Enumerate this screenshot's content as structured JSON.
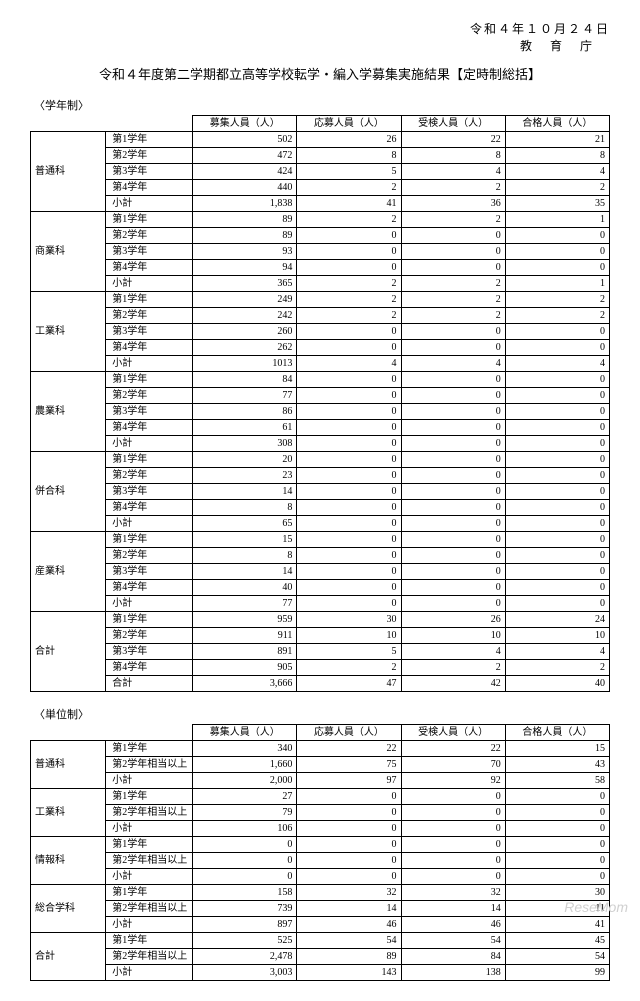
{
  "header": {
    "date": "令和４年１０月２４日",
    "agency": "教育庁"
  },
  "title": "令和４年度第二学期都立高等学校転学・編入学募集実施結果【定時制総括】",
  "table1": {
    "caption": "〈学年制〉",
    "columns": [
      "募集人員（人）",
      "応募人員（人）",
      "受検人員（人）",
      "合格人員（人）"
    ],
    "groups": [
      {
        "name": "普通科",
        "rows": [
          {
            "g": "第1学年",
            "d": [
              "502",
              "26",
              "22",
              "21"
            ]
          },
          {
            "g": "第2学年",
            "d": [
              "472",
              "8",
              "8",
              "8"
            ]
          },
          {
            "g": "第3学年",
            "d": [
              "424",
              "5",
              "4",
              "4"
            ]
          },
          {
            "g": "第4学年",
            "d": [
              "440",
              "2",
              "2",
              "2"
            ]
          },
          {
            "g": "小計",
            "d": [
              "1,838",
              "41",
              "36",
              "35"
            ]
          }
        ]
      },
      {
        "name": "商業科",
        "rows": [
          {
            "g": "第1学年",
            "d": [
              "89",
              "2",
              "2",
              "1"
            ]
          },
          {
            "g": "第2学年",
            "d": [
              "89",
              "0",
              "0",
              "0"
            ]
          },
          {
            "g": "第3学年",
            "d": [
              "93",
              "0",
              "0",
              "0"
            ]
          },
          {
            "g": "第4学年",
            "d": [
              "94",
              "0",
              "0",
              "0"
            ]
          },
          {
            "g": "小計",
            "d": [
              "365",
              "2",
              "2",
              "1"
            ]
          }
        ]
      },
      {
        "name": "工業科",
        "rows": [
          {
            "g": "第1学年",
            "d": [
              "249",
              "2",
              "2",
              "2"
            ]
          },
          {
            "g": "第2学年",
            "d": [
              "242",
              "2",
              "2",
              "2"
            ]
          },
          {
            "g": "第3学年",
            "d": [
              "260",
              "0",
              "0",
              "0"
            ]
          },
          {
            "g": "第4学年",
            "d": [
              "262",
              "0",
              "0",
              "0"
            ]
          },
          {
            "g": "小計",
            "d": [
              "1013",
              "4",
              "4",
              "4"
            ]
          }
        ]
      },
      {
        "name": "農業科",
        "rows": [
          {
            "g": "第1学年",
            "d": [
              "84",
              "0",
              "0",
              "0"
            ]
          },
          {
            "g": "第2学年",
            "d": [
              "77",
              "0",
              "0",
              "0"
            ]
          },
          {
            "g": "第3学年",
            "d": [
              "86",
              "0",
              "0",
              "0"
            ]
          },
          {
            "g": "第4学年",
            "d": [
              "61",
              "0",
              "0",
              "0"
            ]
          },
          {
            "g": "小計",
            "d": [
              "308",
              "0",
              "0",
              "0"
            ]
          }
        ]
      },
      {
        "name": "併合科",
        "rows": [
          {
            "g": "第1学年",
            "d": [
              "20",
              "0",
              "0",
              "0"
            ]
          },
          {
            "g": "第2学年",
            "d": [
              "23",
              "0",
              "0",
              "0"
            ]
          },
          {
            "g": "第3学年",
            "d": [
              "14",
              "0",
              "0",
              "0"
            ]
          },
          {
            "g": "第4学年",
            "d": [
              "8",
              "0",
              "0",
              "0"
            ]
          },
          {
            "g": "小計",
            "d": [
              "65",
              "0",
              "0",
              "0"
            ]
          }
        ]
      },
      {
        "name": "産業科",
        "rows": [
          {
            "g": "第1学年",
            "d": [
              "15",
              "0",
              "0",
              "0"
            ]
          },
          {
            "g": "第2学年",
            "d": [
              "8",
              "0",
              "0",
              "0"
            ]
          },
          {
            "g": "第3学年",
            "d": [
              "14",
              "0",
              "0",
              "0"
            ]
          },
          {
            "g": "第4学年",
            "d": [
              "40",
              "0",
              "0",
              "0"
            ]
          },
          {
            "g": "小計",
            "d": [
              "77",
              "0",
              "0",
              "0"
            ]
          }
        ]
      },
      {
        "name": "合計",
        "rows": [
          {
            "g": "第1学年",
            "d": [
              "959",
              "30",
              "26",
              "24"
            ]
          },
          {
            "g": "第2学年",
            "d": [
              "911",
              "10",
              "10",
              "10"
            ]
          },
          {
            "g": "第3学年",
            "d": [
              "891",
              "5",
              "4",
              "4"
            ]
          },
          {
            "g": "第4学年",
            "d": [
              "905",
              "2",
              "2",
              "2"
            ]
          },
          {
            "g": "合計",
            "d": [
              "3,666",
              "47",
              "42",
              "40"
            ]
          }
        ]
      }
    ]
  },
  "table2": {
    "caption": "〈単位制〉",
    "columns": [
      "募集人員（人）",
      "応募人員（人）",
      "受検人員（人）",
      "合格人員（人）"
    ],
    "groups": [
      {
        "name": "普通科",
        "rows": [
          {
            "g": "第1学年",
            "d": [
              "340",
              "22",
              "22",
              "15"
            ]
          },
          {
            "g": "第2学年相当以上",
            "d": [
              "1,660",
              "75",
              "70",
              "43"
            ]
          },
          {
            "g": "小計",
            "d": [
              "2,000",
              "97",
              "92",
              "58"
            ]
          }
        ]
      },
      {
        "name": "工業科",
        "rows": [
          {
            "g": "第1学年",
            "d": [
              "27",
              "0",
              "0",
              "0"
            ]
          },
          {
            "g": "第2学年相当以上",
            "d": [
              "79",
              "0",
              "0",
              "0"
            ]
          },
          {
            "g": "小計",
            "d": [
              "106",
              "0",
              "0",
              "0"
            ]
          }
        ]
      },
      {
        "name": "情報科",
        "rows": [
          {
            "g": "第1学年",
            "d": [
              "0",
              "0",
              "0",
              "0"
            ]
          },
          {
            "g": "第2学年相当以上",
            "d": [
              "0",
              "0",
              "0",
              "0"
            ]
          },
          {
            "g": "小計",
            "d": [
              "0",
              "0",
              "0",
              "0"
            ]
          }
        ]
      },
      {
        "name": "総合学科",
        "rows": [
          {
            "g": "第1学年",
            "d": [
              "158",
              "32",
              "32",
              "30"
            ]
          },
          {
            "g": "第2学年相当以上",
            "d": [
              "739",
              "14",
              "14",
              "11"
            ]
          },
          {
            "g": "小計",
            "d": [
              "897",
              "46",
              "46",
              "41"
            ]
          }
        ]
      },
      {
        "name": "合計",
        "rows": [
          {
            "g": "第1学年",
            "d": [
              "525",
              "54",
              "54",
              "45"
            ]
          },
          {
            "g": "第2学年相当以上",
            "d": [
              "2,478",
              "89",
              "84",
              "54"
            ]
          },
          {
            "g": "小計",
            "d": [
              "3,003",
              "143",
              "138",
              "99"
            ]
          }
        ]
      }
    ]
  },
  "watermark": "ReseMom"
}
